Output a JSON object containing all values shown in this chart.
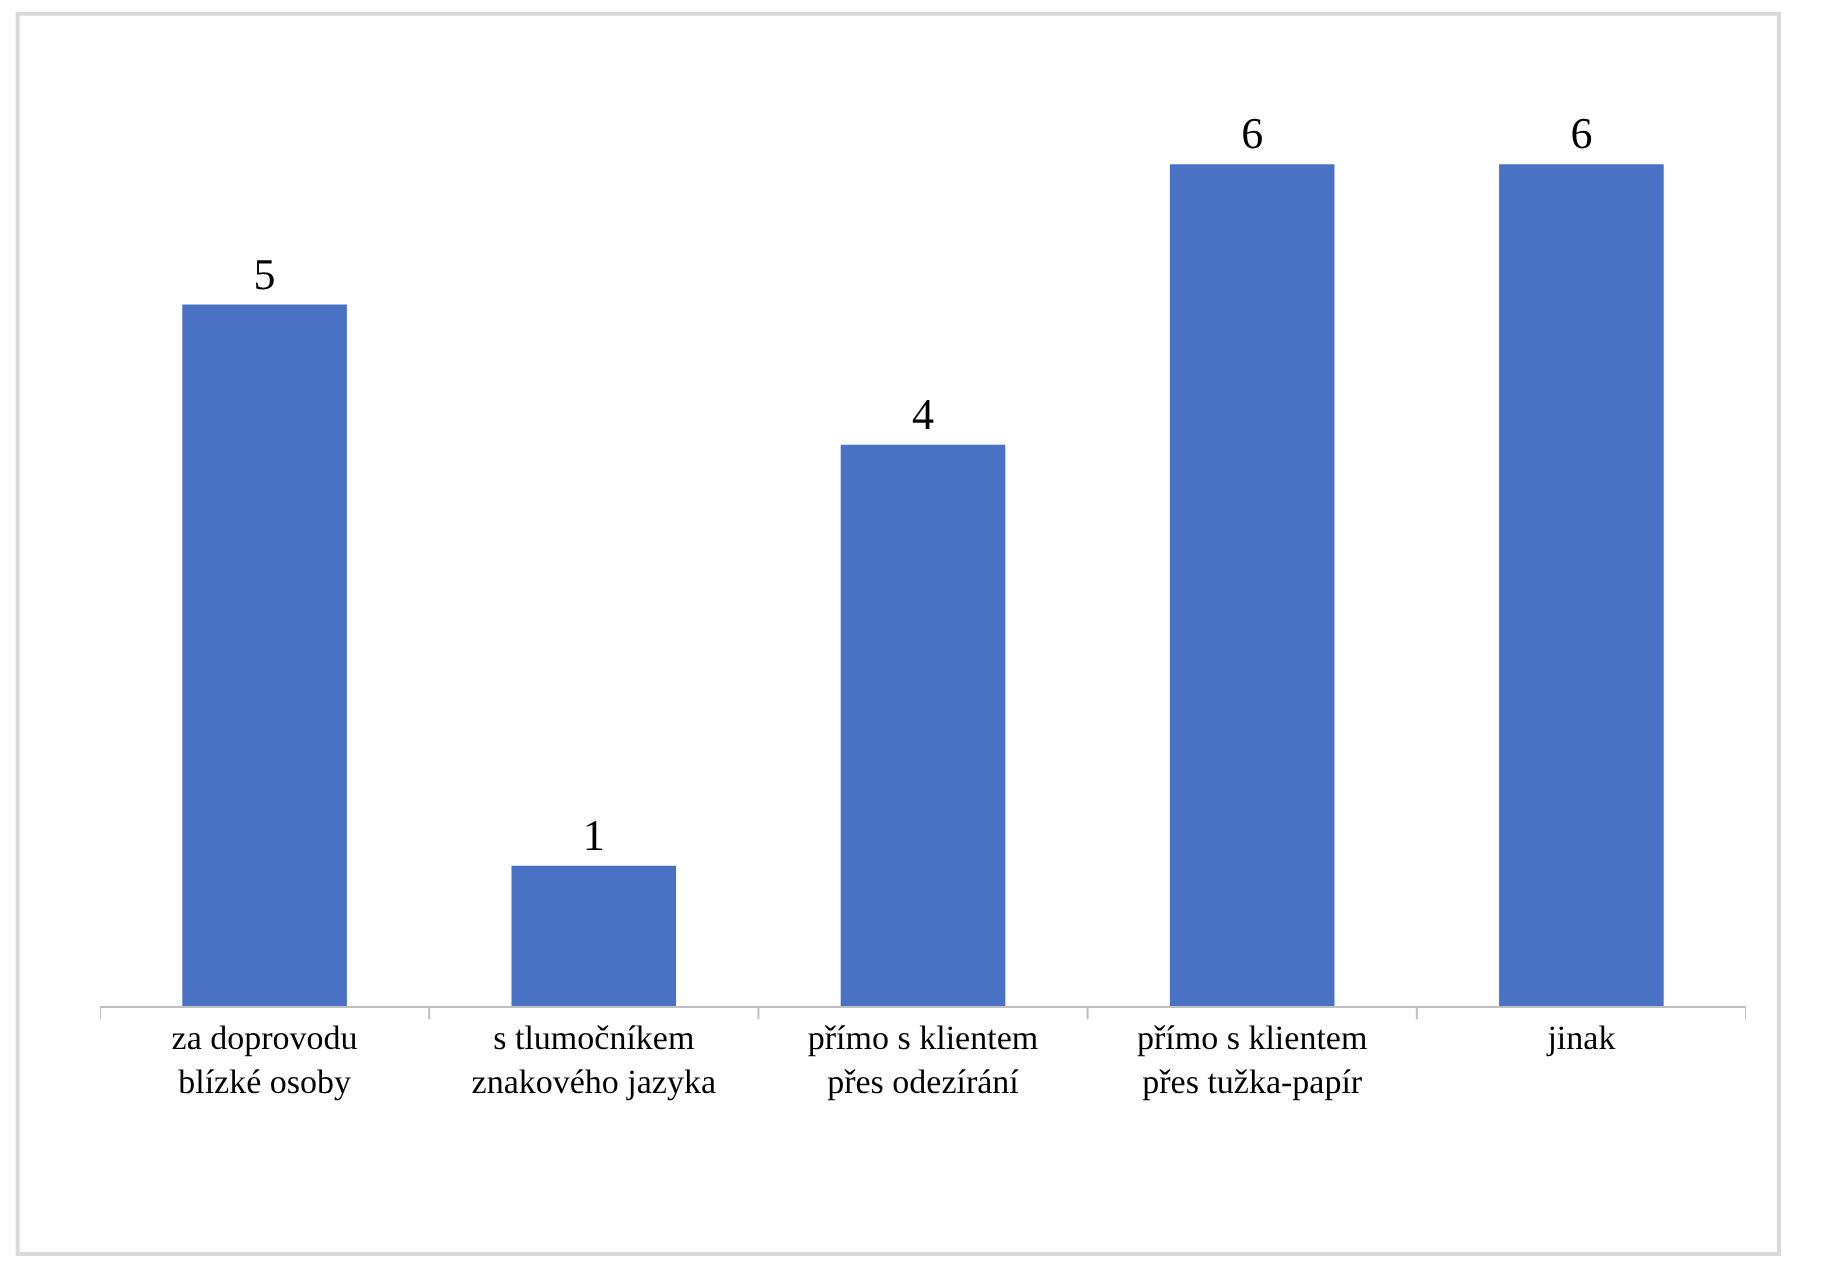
{
  "chart_data": {
    "type": "bar",
    "categories": [
      "za doprovodu\nblízké osoby",
      "s tlumočníkem\nznakového jazyka",
      "přímo s klientem\npřes odezírání",
      "přímo s klientem\npřes tužka-papír",
      "jinak"
    ],
    "values": [
      5,
      1,
      4,
      6,
      6
    ],
    "color": "#4a72c4",
    "data_labels": true,
    "legend": false
  }
}
